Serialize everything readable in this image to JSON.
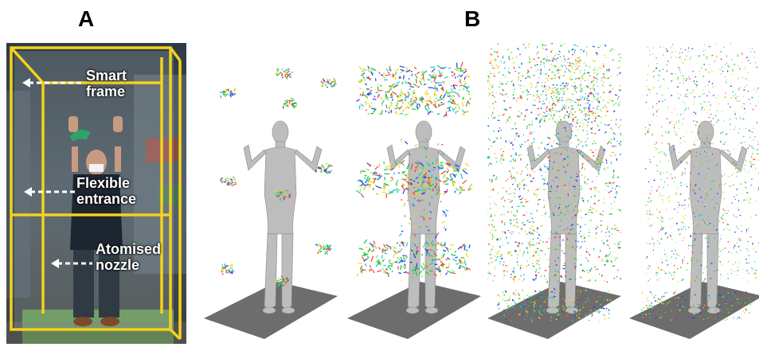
{
  "panel_a": {
    "label": "A",
    "callouts": [
      {
        "line1": "Smart",
        "line2": "frame"
      },
      {
        "line1": "Flexible",
        "line2": "entrance"
      },
      {
        "line1": "Atomised",
        "line2": "nozzle"
      }
    ]
  },
  "panel_b": {
    "label": "B",
    "frames": 4
  },
  "colors": {
    "frame_yellow": "#f3d21c",
    "floor_gray": "#6d6d6d",
    "mannequin": "#bdbdbd",
    "spray_colors": [
      "#1f3cff",
      "#19c43a",
      "#8ee23a",
      "#ffd21a",
      "#ff3b2b",
      "#18c8c8"
    ]
  }
}
